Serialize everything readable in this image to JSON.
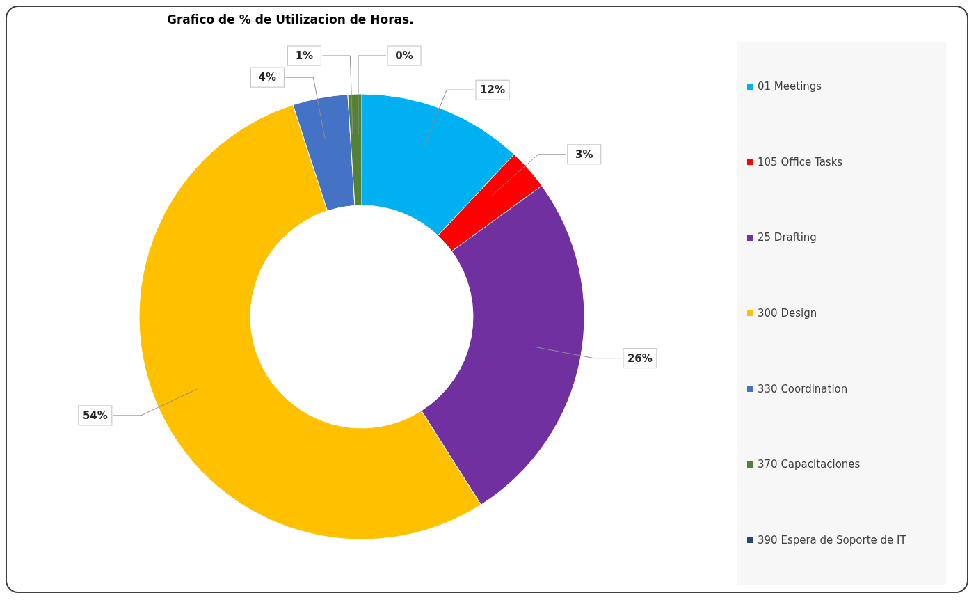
{
  "chart_data": {
    "type": "donut",
    "title": "Grafico de % de Utilizacion de Horas.",
    "categories": [
      "01 Meetings",
      "105 Office Tasks",
      "25 Drafting",
      "300 Design",
      "330 Coordination",
      "370 Capacitaciones",
      "390 Espera de Soporte de IT"
    ],
    "values": [
      12,
      3,
      26,
      54,
      4,
      1,
      0
    ],
    "value_labels": [
      "12%",
      "3%",
      "26%",
      "54%",
      "4%",
      "1%",
      "0%"
    ],
    "colors": [
      "#00b0f0",
      "#ff0000",
      "#7030a0",
      "#ffc000",
      "#4472c4",
      "#548235",
      "#264478"
    ],
    "legend": "right"
  }
}
